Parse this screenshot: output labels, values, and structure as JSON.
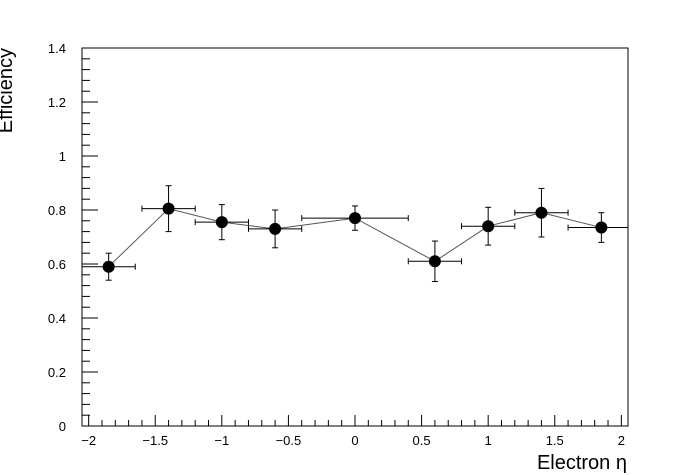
{
  "chart_data": {
    "type": "scatter",
    "title": "",
    "xlabel": "Electron η",
    "ylabel": "Efficiency",
    "xlim": [
      -2.05,
      2.05
    ],
    "ylim": [
      0,
      1.4
    ],
    "grid": false,
    "x_ticks": [
      -2,
      -1.5,
      -1,
      -0.5,
      0,
      0.5,
      1,
      1.5,
      2
    ],
    "x_tick_labels": [
      "−2",
      "−1.5",
      "−1",
      "−0.5",
      "0",
      "0.5",
      "1",
      "1.5",
      "2"
    ],
    "y_ticks": [
      0,
      0.2,
      0.4,
      0.6,
      0.8,
      1,
      1.2,
      1.4
    ],
    "y_tick_labels": [
      "0",
      "0.2",
      "0.4",
      "0.6",
      "0.8",
      "1",
      "1.2",
      "1.4"
    ],
    "series": [
      {
        "points": [
          {
            "x": -1.85,
            "y": 0.59,
            "xerr": 0.2,
            "yerr": 0.05
          },
          {
            "x": -1.4,
            "y": 0.805,
            "xerr": 0.2,
            "yerr": 0.085
          },
          {
            "x": -1.0,
            "y": 0.755,
            "xerr": 0.2,
            "yerr": 0.065
          },
          {
            "x": -0.6,
            "y": 0.73,
            "xerr": 0.2,
            "yerr": 0.07
          },
          {
            "x": 0.0,
            "y": 0.77,
            "xerr": 0.4,
            "yerr": 0.045
          },
          {
            "x": 0.6,
            "y": 0.61,
            "xerr": 0.2,
            "yerr": 0.075
          },
          {
            "x": 1.0,
            "y": 0.74,
            "xerr": 0.2,
            "yerr": 0.07
          },
          {
            "x": 1.4,
            "y": 0.79,
            "xerr": 0.2,
            "yerr": 0.09
          },
          {
            "x": 1.85,
            "y": 0.735,
            "xerr": 0.25,
            "yerr": 0.055
          }
        ],
        "color": "#000000",
        "line_color": "#555555"
      }
    ]
  }
}
